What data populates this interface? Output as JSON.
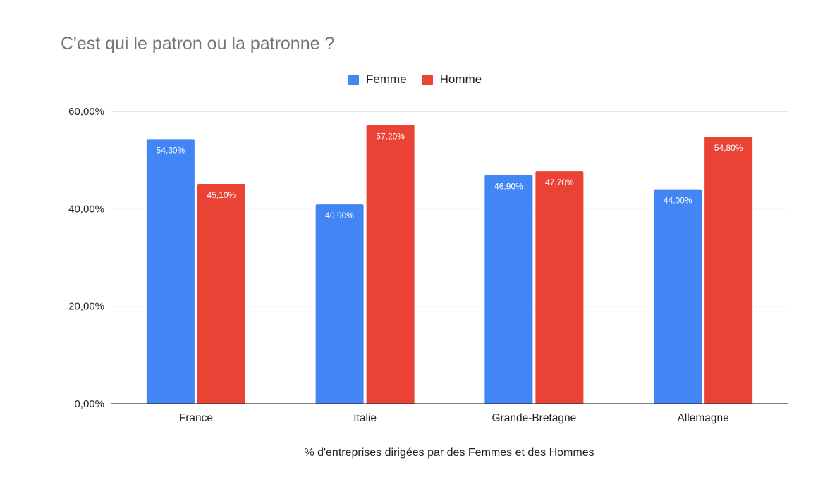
{
  "chart_data": {
    "type": "bar",
    "title": "C'est qui le patron ou la patronne ?",
    "xlabel": "% d'entreprises dirigées par des Femmes et des Hommes",
    "ylabel": "",
    "categories": [
      "France",
      "Italie",
      "Grande-Bretagne",
      "Allemagne"
    ],
    "series": [
      {
        "name": "Femme",
        "color": "#4285f4",
        "values": [
          54.3,
          40.9,
          46.9,
          44.0
        ],
        "labels": [
          "54,30%",
          "40,90%",
          "46,90%",
          "44,00%"
        ]
      },
      {
        "name": "Homme",
        "color": "#ea4335",
        "values": [
          45.1,
          57.2,
          47.7,
          54.8
        ],
        "labels": [
          "45,10%",
          "57,20%",
          "47,70%",
          "54,80%"
        ]
      }
    ],
    "ylim": [
      0,
      60
    ],
    "yticks": [
      0,
      20,
      40,
      60
    ],
    "ytick_labels": [
      "0,00%",
      "20,00%",
      "40,00%",
      "60,00%"
    ],
    "grid": true,
    "legend_position": "top"
  }
}
